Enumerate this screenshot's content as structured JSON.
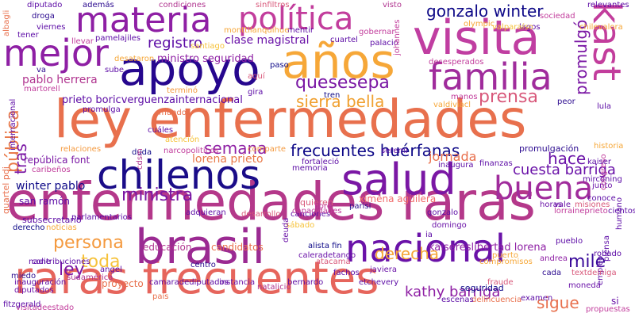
{
  "words": [
    {
      "text": "ley enfermedades",
      "color": "#e8704d"
    },
    {
      "text": "enfermedades raras",
      "color": "#b4388a"
    },
    {
      "text": "raras frecuentes",
      "color": "#e6655c"
    },
    {
      "text": "brasil",
      "color": "#9b2a92"
    },
    {
      "text": "visita",
      "color": "#c03ea1"
    },
    {
      "text": "años",
      "color": "#f6a738"
    },
    {
      "text": "apoyo",
      "color": "#26078e"
    },
    {
      "text": "salud",
      "color": "#7a17a4"
    },
    {
      "text": "chilenos",
      "color": "#1a0c88"
    },
    {
      "text": "nacional",
      "color": "#6a12a8"
    },
    {
      "text": "materia",
      "color": "#8e1fa4"
    },
    {
      "text": "mejor",
      "color": "#8e1fa4"
    },
    {
      "text": "política",
      "color": "#c23d9c"
    },
    {
      "text": "familia",
      "color": "#a02c9c"
    },
    {
      "text": "kast",
      "color": "#c23d9c"
    },
    {
      "text": "buena",
      "color": "#a02c9c"
    },
    {
      "text": "gonzalo winter",
      "color": "#0d0887"
    },
    {
      "text": "frecuentes huérfanas",
      "color": "#0d0887"
    },
    {
      "text": "registro",
      "color": "#5b0aa5"
    },
    {
      "text": "quesesepa",
      "color": "#7a17a4"
    },
    {
      "text": "prensa",
      "color": "#d8587a"
    },
    {
      "text": "sierra bella",
      "color": "#f0a030"
    },
    {
      "text": "ministra",
      "color": "#7a17a4"
    },
    {
      "text": "semana",
      "color": "#8e1fa4"
    },
    {
      "text": "persona",
      "color": "#f49a3f"
    },
    {
      "text": "toda",
      "color": "#f6c23a"
    },
    {
      "text": "derecha",
      "color": "#f6a738"
    },
    {
      "text": "cuesta barriga",
      "color": "#6a12a8"
    },
    {
      "text": "kathy barriga",
      "color": "#8e1fa4"
    },
    {
      "text": "mile",
      "color": "#3a0a9a"
    },
    {
      "text": "sigue",
      "color": "#e8704d"
    },
    {
      "text": "ley",
      "color": "#7a17a4"
    },
    {
      "text": "hace",
      "color": "#6a12a8"
    },
    {
      "text": "pública",
      "color": "#e97a4a"
    },
    {
      "text": "tras",
      "color": "#7a17a4"
    },
    {
      "text": "promulgó",
      "color": "#7a17a4"
    },
    {
      "text": "pablo herrera",
      "color": "#b0348f"
    },
    {
      "text": "lorena prieto",
      "color": "#e97a4a"
    },
    {
      "text": "winter pablo",
      "color": "#0d0887"
    },
    {
      "text": "clase magistral",
      "color": "#6a12a8"
    },
    {
      "text": "ministro seguridad",
      "color": "#8e1fa4"
    },
    {
      "text": "prieto boricverguenzainternacional",
      "color": "#5b0aa5"
    },
    {
      "text": "kaisereslibertad lorena",
      "color": "#8e1fa4"
    },
    {
      "text": "jornada",
      "color": "#e8704d"
    },
    {
      "text": "ximena aguilera",
      "color": "#f06a6a"
    },
    {
      "text": "educación",
      "color": "#b0348f"
    },
    {
      "text": "candidatos",
      "color": "#e8704d"
    },
    {
      "text": "proyecto",
      "color": "#e8704d"
    },
    {
      "text": "república font",
      "color": "#7a17a4"
    },
    {
      "text": "san ramón",
      "color": "#5b0aa5"
    },
    {
      "text": "subsecretario",
      "color": "#5b0aa5"
    },
    {
      "text": "derecho",
      "color": "#0d0887"
    },
    {
      "text": "noticias",
      "color": "#f6a738"
    },
    {
      "text": "inauguración",
      "color": "#5b0aa5"
    },
    {
      "text": "seguridad",
      "color": "#0d0887"
    },
    {
      "text": "examen",
      "color": "#5b0aa5"
    },
    {
      "text": "promulgación",
      "color": "#2b0a8f"
    },
    {
      "text": "historia",
      "color": "#f6a738"
    },
    {
      "text": "desarrollo",
      "color": "#d8587a"
    },
    {
      "text": "canciones",
      "color": "#5b0aa5"
    },
    {
      "text": "quieren",
      "color": "#d8587a"
    },
    {
      "text": "sábado",
      "color": "#f6c23a"
    },
    {
      "text": "atacama",
      "color": "#d8587a"
    },
    {
      "text": "instancia",
      "color": "#6a12a8"
    },
    {
      "text": "bernardo",
      "color": "#5b0aa5"
    },
    {
      "text": "cada",
      "color": "#2b0a8f"
    },
    {
      "text": "moneda",
      "color": "#6a12a8"
    },
    {
      "text": "andrea",
      "color": "#8e1fa4"
    },
    {
      "text": "país",
      "color": "#e8704d"
    },
    {
      "text": "junto",
      "color": "#6a12a8"
    },
    {
      "text": "congreso",
      "color": "#c23d9c"
    },
    {
      "text": "humano",
      "color": "#5b0aa5"
    },
    {
      "text": "peor",
      "color": "#2b0a8f"
    },
    {
      "text": "lula",
      "color": "#5b0aa5"
    },
    {
      "text": "diputado",
      "color": "#5b0aa5"
    },
    {
      "text": "droga",
      "color": "#2b0a8f"
    },
    {
      "text": "tener",
      "color": "#5b0aa5"
    },
    {
      "text": "sube",
      "color": "#5b0aa5"
    },
    {
      "text": "lagos",
      "color": "#5b0aa5"
    },
    {
      "text": "visto",
      "color": "#b0348f"
    },
    {
      "text": "santiago",
      "color": "#f6c23a"
    },
    {
      "text": "paso",
      "color": "#0d0887"
    },
    {
      "text": "aquí",
      "color": "#d8587a"
    },
    {
      "text": "gira",
      "color": "#5b0aa5"
    },
    {
      "text": "mundo",
      "color": "#e8704d"
    },
    {
      "text": "duda",
      "color": "#0d0887"
    },
    {
      "text": "memoria",
      "color": "#5b0aa5"
    },
    {
      "text": "gonzalo",
      "color": "#5b0aa5"
    },
    {
      "text": "domingo",
      "color": "#6a12a8"
    },
    {
      "text": "javiera",
      "color": "#6a12a8"
    },
    {
      "text": "fachos",
      "color": "#5b0aa5"
    },
    {
      "text": "ia",
      "color": "#5b0aa5"
    },
    {
      "text": "horas",
      "color": "#6a12a8"
    },
    {
      "text": "vale",
      "color": "#6a12a8"
    },
    {
      "text": "inaugura",
      "color": "#5b0aa5"
    },
    {
      "text": "seremi",
      "color": "#5b0aa5"
    },
    {
      "text": "libre",
      "color": "#c23d9c"
    },
    {
      "text": "parisi",
      "color": "#2b0a8f"
    },
    {
      "text": "caleradetango",
      "color": "#6a12a8"
    },
    {
      "text": "alista fin",
      "color": "#0d0887"
    },
    {
      "text": "deuda",
      "color": "#6a12a8"
    },
    {
      "text": "olympic",
      "color": "#f6a738"
    },
    {
      "text": "empleo",
      "color": "#5b0aa5"
    },
    {
      "text": "misiones",
      "color": "#d8587a"
    },
    {
      "text": "puerto",
      "color": "#f6a738"
    },
    {
      "text": "fortaleció",
      "color": "#5b0aa5"
    },
    {
      "text": "centro",
      "color": "#2b0a8f"
    },
    {
      "text": "relaciones",
      "color": "#f49a3f"
    },
    {
      "text": "caribeños",
      "color": "#c23d9c"
    },
    {
      "text": "nadie",
      "color": "#5b0aa5"
    },
    {
      "text": "miedo",
      "color": "#2b0a8f"
    },
    {
      "text": "sudamérica",
      "color": "#b0348f"
    },
    {
      "text": "diputados",
      "color": "#6a12a8"
    },
    {
      "text": "condiciones",
      "color": "#b0348f"
    },
    {
      "text": "además",
      "color": "#2b0a8f"
    },
    {
      "text": "sinfiltros",
      "color": "#d8587a"
    },
    {
      "text": "viernes",
      "color": "#5b0aa5"
    },
    {
      "text": "desataron",
      "color": "#f6a738"
    },
    {
      "text": "desesperados",
      "color": "#c23d9c"
    },
    {
      "text": "tren",
      "color": "#0d0887"
    },
    {
      "text": "promulga",
      "color": "#5b0aa5"
    },
    {
      "text": "manos",
      "color": "#c23d9c"
    },
    {
      "text": "valdiviacl",
      "color": "#f6a738"
    },
    {
      "text": "mirconing",
      "color": "#5b0aa5"
    },
    {
      "text": "kaiser",
      "color": "#5b0aa5"
    },
    {
      "text": "conoce",
      "color": "#5b0aa5"
    },
    {
      "text": "lorraineprieto",
      "color": "#c23d9c"
    },
    {
      "text": "delincuencia",
      "color": "#e8704d"
    },
    {
      "text": "robado",
      "color": "#5b0aa5"
    },
    {
      "text": "piensa",
      "color": "#5b0aa5"
    },
    {
      "text": "albagli",
      "color": "#e8704d"
    },
    {
      "text": "internacional",
      "color": "#5b0aa5"
    },
    {
      "text": "quartel pdi",
      "color": "#e8704d"
    },
    {
      "text": "cdsm",
      "color": "#b0348f"
    },
    {
      "text": "chilevalora",
      "color": "#f6a738"
    },
    {
      "text": "cientos",
      "color": "#5b0aa5"
    },
    {
      "text": "relevantes",
      "color": "#5b0aa5"
    },
    {
      "text": "gobernar",
      "color": "#c23d9c"
    },
    {
      "text": "sociedad",
      "color": "#c23d9c"
    },
    {
      "text": "palacio",
      "color": "#5b0aa5"
    },
    {
      "text": "llevar",
      "color": "#c23d9c"
    },
    {
      "text": "mentir",
      "color": "#5b0aa5"
    },
    {
      "text": "johannes",
      "color": "#c23d9c"
    },
    {
      "text": "monttilanquihue",
      "color": "#f6a738"
    },
    {
      "text": "pamelajiles",
      "color": "#5b0aa5"
    },
    {
      "text": "martorell",
      "color": "#c23d9c"
    },
    {
      "text": "atención",
      "color": "#f6c23a"
    },
    {
      "text": "comparte",
      "color": "#f49a3f"
    },
    {
      "text": "cuartel",
      "color": "#5b0aa5"
    },
    {
      "text": "valparaíso",
      "color": "#f6c23a"
    },
    {
      "text": "capacidades",
      "color": "#c23d9c"
    },
    {
      "text": "terminó",
      "color": "#f49a3f"
    },
    {
      "text": "cuáles",
      "color": "#5b0aa5"
    },
    {
      "text": "parlamentarios",
      "color": "#5b0aa5"
    },
    {
      "text": "contribuciones",
      "color": "#5b0aa5"
    },
    {
      "text": "visitadeestado",
      "color": "#c23d9c"
    },
    {
      "text": "camaradediputados",
      "color": "#5b0aa5"
    },
    {
      "text": "natalicio",
      "color": "#b0348f"
    },
    {
      "text": "compromisos",
      "color": "#f6a738"
    },
    {
      "text": "propuestas",
      "color": "#c23d9c"
    },
    {
      "text": "etchevery",
      "color": "#5b0aa5"
    },
    {
      "text": "fraude",
      "color": "#d8587a"
    },
    {
      "text": "pueblo",
      "color": "#5b0aa5"
    },
    {
      "text": "finanzas",
      "color": "#5b0aa5"
    },
    {
      "text": "textdeiniga",
      "color": "#d8587a"
    },
    {
      "text": "fitzgerald",
      "color": "#5b0aa5"
    },
    {
      "text": "si",
      "color": "#6a12a8"
    },
    {
      "text": "va",
      "color": "#2b0a8f"
    },
    {
      "text": "angel",
      "color": "#5b0aa5"
    },
    {
      "text": "narcopoliticos",
      "color": "#c23d9c"
    },
    {
      "text": "adquieran",
      "color": "#5b0aa5"
    },
    {
      "text": "escenas",
      "color": "#5b0aa5"
    },
    {
      "text": "mejora",
      "color": "#f6a738"
    }
  ]
}
